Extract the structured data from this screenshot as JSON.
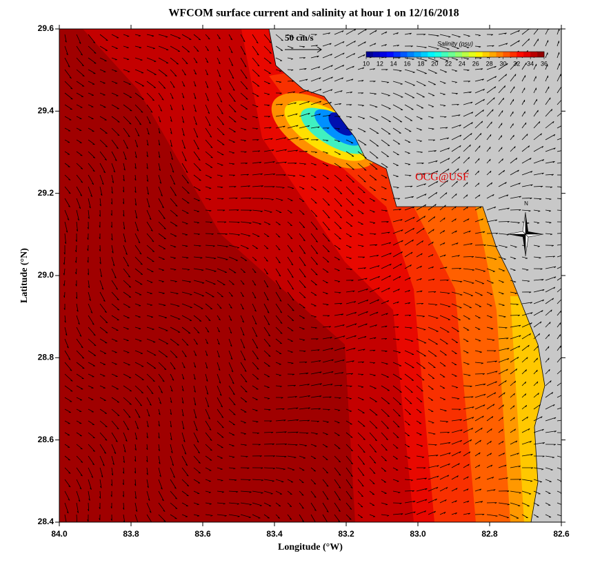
{
  "map": {
    "title": "WFCOM surface current and salinity at hour 1 on 12/16/2018",
    "x_label": "Longitude (°W)",
    "y_label": "Latitude (°N)",
    "xlim": [
      84.0,
      82.6
    ],
    "ylim": [
      28.4,
      29.6
    ],
    "xticks": [
      {
        "value": 84.0,
        "label": "84.0"
      },
      {
        "value": 83.8,
        "label": "83.8"
      },
      {
        "value": 83.6,
        "label": "83.6"
      },
      {
        "value": 83.4,
        "label": "83.4"
      },
      {
        "value": 83.2,
        "label": "83.2"
      },
      {
        "value": 83.0,
        "label": "83.0"
      },
      {
        "value": 82.8,
        "label": "82.8"
      },
      {
        "value": 82.6,
        "label": "82.6"
      }
    ],
    "yticks": [
      {
        "value": 28.4,
        "label": "28.4"
      },
      28.6,
      28.8,
      {
        "value": 29.0,
        "label": "29.0"
      },
      29.2,
      29.4,
      29.6
    ],
    "scale_label": "50 cm/s",
    "colorbar_title": "Salinity (psu)",
    "colorbar_ticks": [
      10,
      12,
      14,
      16,
      18,
      20,
      22,
      24,
      26,
      28,
      30,
      32,
      34,
      36
    ],
    "credit": "OCG@USF",
    "north_label": "N"
  }
}
